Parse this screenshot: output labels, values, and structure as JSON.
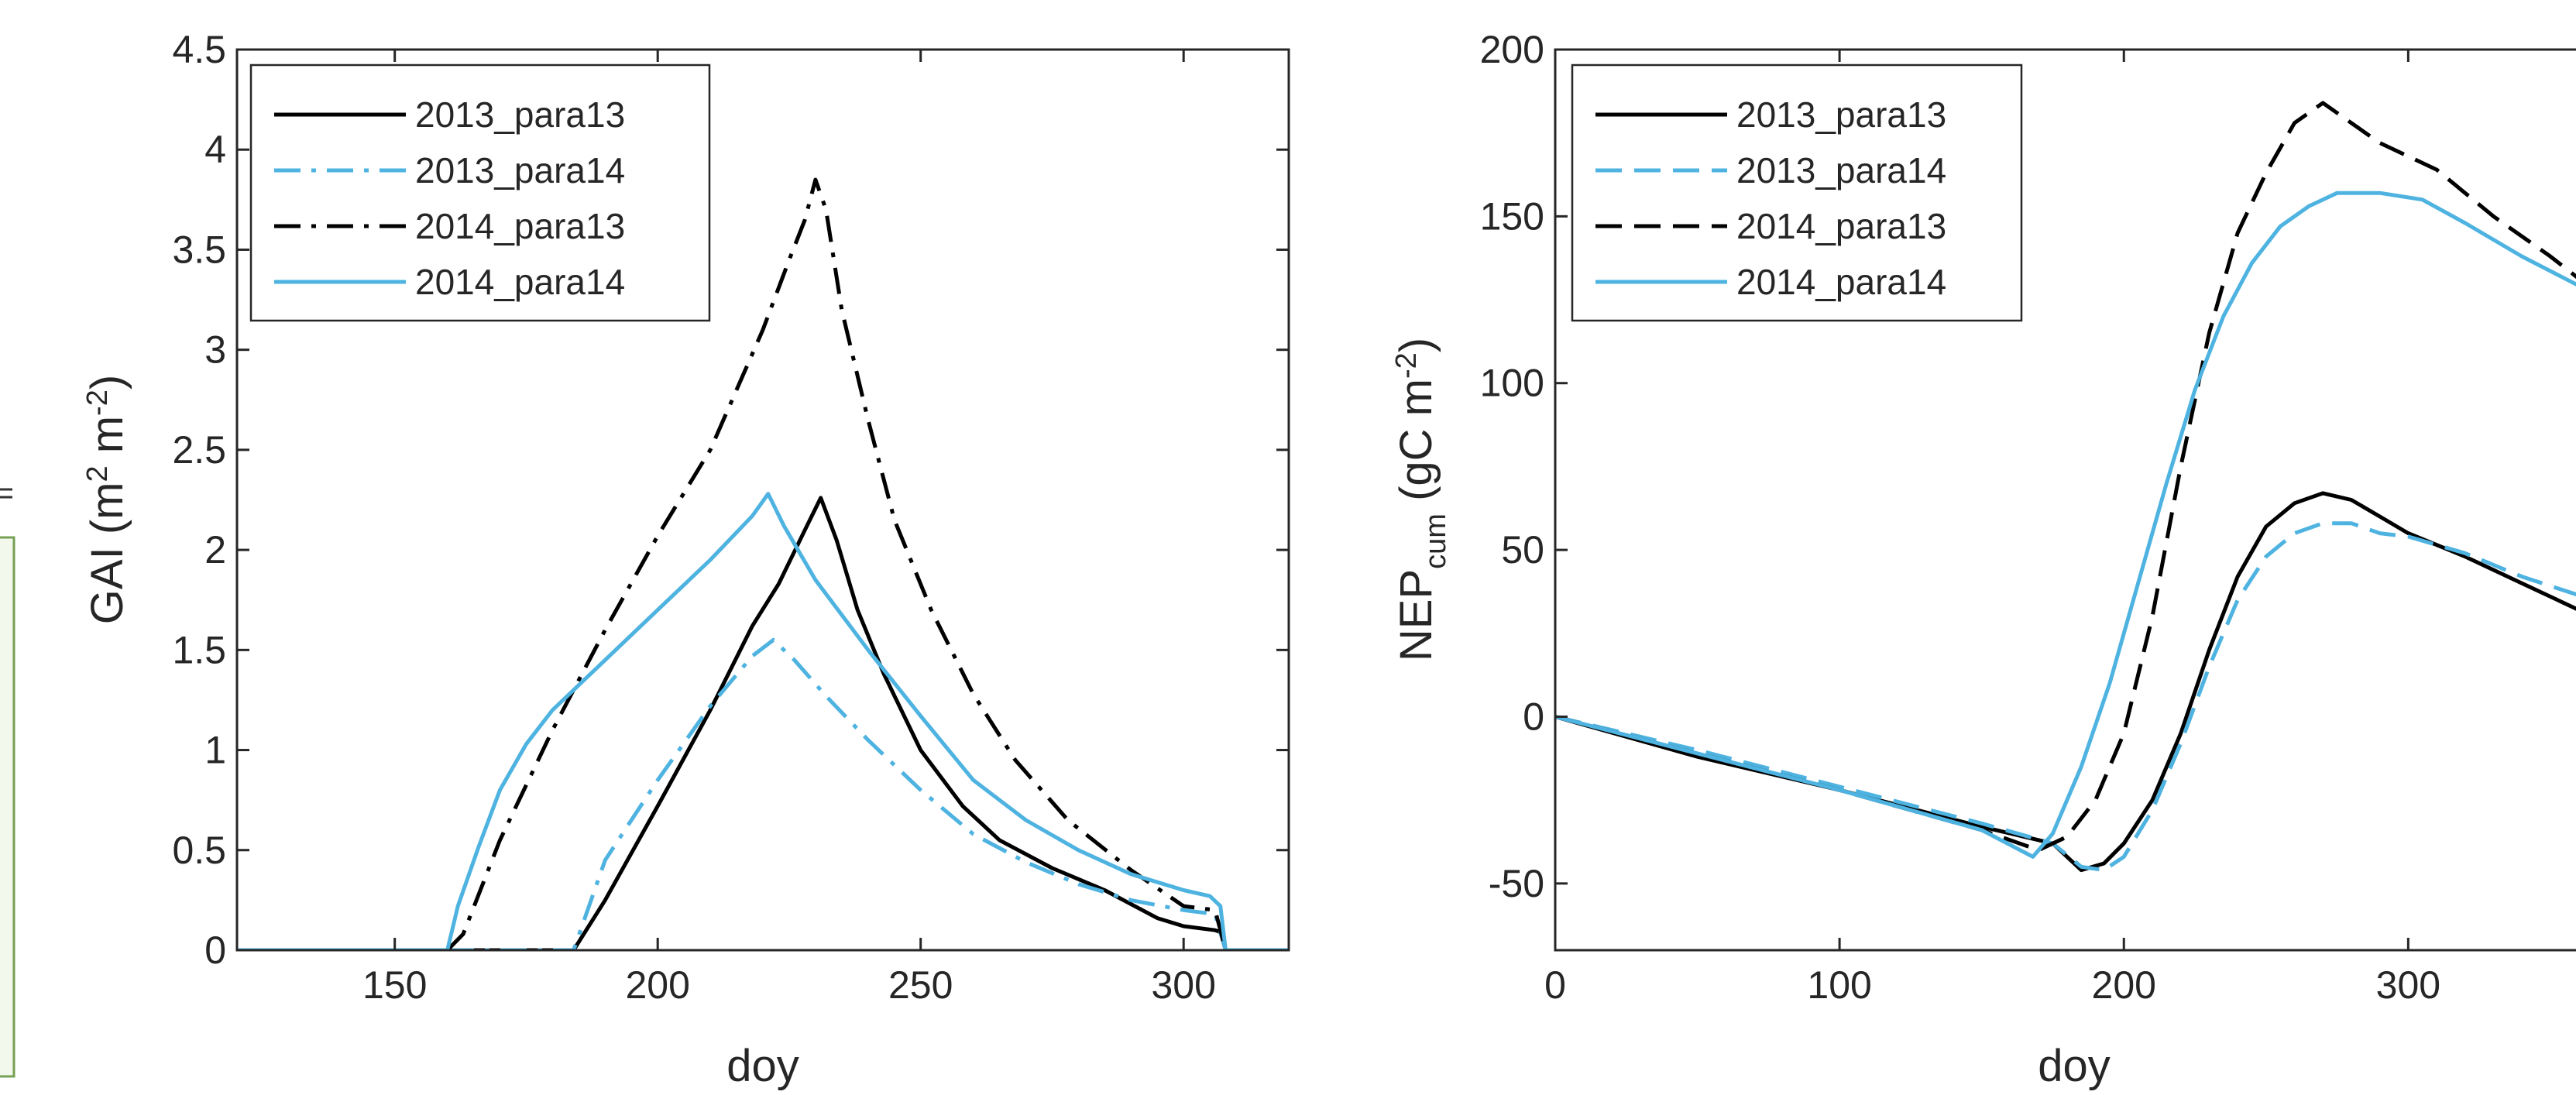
{
  "chart_data": [
    {
      "type": "line",
      "title": "",
      "xlabel": "doy",
      "ylabel": {
        "main": "GAI (m",
        "sup1": "2",
        "mid": " m",
        "sup2": "-2",
        "end": ")"
      },
      "xlim": [
        120,
        320
      ],
      "ylim": [
        0,
        4.5
      ],
      "xticks": [
        150,
        200,
        250,
        300
      ],
      "yticks": [
        0,
        0.5,
        1,
        1.5,
        2,
        2.5,
        3,
        3.5,
        4,
        4.5
      ],
      "grid": false,
      "legend_position": "top-left",
      "series": [
        {
          "name": "2013_para13",
          "color": "#000000",
          "dash": "solid",
          "points": [
            [
              120,
              0
            ],
            [
              184,
              0
            ],
            [
              190,
              0.25
            ],
            [
              200,
              0.72
            ],
            [
              210,
              1.2
            ],
            [
              218,
              1.62
            ],
            [
              223,
              1.83
            ],
            [
              228,
              2.1
            ],
            [
              231,
              2.26
            ],
            [
              234,
              2.05
            ],
            [
              238,
              1.7
            ],
            [
              243,
              1.38
            ],
            [
              250,
              1.0
            ],
            [
              258,
              0.72
            ],
            [
              265,
              0.55
            ],
            [
              275,
              0.41
            ],
            [
              285,
              0.3
            ],
            [
              295,
              0.16
            ],
            [
              300,
              0.12
            ],
            [
              306,
              0.1
            ],
            [
              307,
              0.09
            ],
            [
              308,
              0
            ],
            [
              320,
              0
            ]
          ]
        },
        {
          "name": "2013_para14",
          "color": "#4EB3E0",
          "dash": "dashdot",
          "points": [
            [
              120,
              0
            ],
            [
              184,
              0
            ],
            [
              190,
              0.45
            ],
            [
              200,
              0.85
            ],
            [
              210,
              1.22
            ],
            [
              218,
              1.47
            ],
            [
              222,
              1.55
            ],
            [
              226,
              1.45
            ],
            [
              232,
              1.27
            ],
            [
              240,
              1.05
            ],
            [
              250,
              0.8
            ],
            [
              260,
              0.58
            ],
            [
              270,
              0.44
            ],
            [
              280,
              0.33
            ],
            [
              290,
              0.25
            ],
            [
              300,
              0.2
            ],
            [
              306,
              0.18
            ],
            [
              308,
              0
            ],
            [
              320,
              0
            ]
          ]
        },
        {
          "name": "2014_para13",
          "color": "#000000",
          "dash": "dashdot",
          "points": [
            [
              120,
              0
            ],
            [
              160,
              0
            ],
            [
              163,
              0.08
            ],
            [
              170,
              0.55
            ],
            [
              180,
              1.1
            ],
            [
              190,
              1.6
            ],
            [
              200,
              2.07
            ],
            [
              210,
              2.5
            ],
            [
              220,
              3.1
            ],
            [
              225,
              3.45
            ],
            [
              228,
              3.65
            ],
            [
              230,
              3.85
            ],
            [
              232,
              3.7
            ],
            [
              235,
              3.2
            ],
            [
              240,
              2.65
            ],
            [
              245,
              2.15
            ],
            [
              252,
              1.7
            ],
            [
              260,
              1.28
            ],
            [
              268,
              0.95
            ],
            [
              278,
              0.65
            ],
            [
              290,
              0.4
            ],
            [
              300,
              0.22
            ],
            [
              306,
              0.2
            ],
            [
              308,
              0
            ],
            [
              320,
              0
            ]
          ]
        },
        {
          "name": "2014_para14",
          "color": "#4EB3E0",
          "dash": "solid",
          "points": [
            [
              120,
              0
            ],
            [
              160,
              0
            ],
            [
              162,
              0.22
            ],
            [
              166,
              0.52
            ],
            [
              170,
              0.8
            ],
            [
              175,
              1.03
            ],
            [
              180,
              1.2
            ],
            [
              190,
              1.45
            ],
            [
              200,
              1.7
            ],
            [
              210,
              1.95
            ],
            [
              218,
              2.17
            ],
            [
              221,
              2.28
            ],
            [
              224,
              2.12
            ],
            [
              230,
              1.85
            ],
            [
              240,
              1.5
            ],
            [
              250,
              1.17
            ],
            [
              260,
              0.85
            ],
            [
              270,
              0.65
            ],
            [
              280,
              0.5
            ],
            [
              290,
              0.38
            ],
            [
              300,
              0.3
            ],
            [
              305,
              0.27
            ],
            [
              307,
              0.22
            ],
            [
              308,
              0
            ],
            [
              320,
              0
            ]
          ]
        }
      ]
    },
    {
      "type": "line",
      "title": "",
      "xlabel": "doy",
      "ylabel": {
        "main": "NEP",
        "sub": "cum",
        "mid": " (gC m",
        "sup": "-2",
        "end": ")"
      },
      "xlim": [
        0,
        365
      ],
      "ylim": [
        -70,
        200
      ],
      "xticks": [
        0,
        100,
        200,
        300
      ],
      "yticks": [
        -50,
        0,
        50,
        100,
        150,
        200
      ],
      "grid": false,
      "legend_position": "top-left",
      "series": [
        {
          "name": "2013_para13",
          "color": "#000000",
          "dash": "solid",
          "points": [
            [
              0,
              0
            ],
            [
              50,
              -12
            ],
            [
              100,
              -22
            ],
            [
              150,
              -33
            ],
            [
              175,
              -38
            ],
            [
              185,
              -46
            ],
            [
              193,
              -44
            ],
            [
              200,
              -38
            ],
            [
              210,
              -25
            ],
            [
              220,
              -5
            ],
            [
              230,
              20
            ],
            [
              240,
              42
            ],
            [
              250,
              57
            ],
            [
              260,
              64
            ],
            [
              270,
              67
            ],
            [
              280,
              65
            ],
            [
              290,
              60
            ],
            [
              300,
              55
            ],
            [
              320,
              48
            ],
            [
              340,
              40
            ],
            [
              365,
              30
            ]
          ]
        },
        {
          "name": "2013_para14",
          "color": "#4EB3E0",
          "dash": "dashed",
          "points": [
            [
              0,
              0
            ],
            [
              50,
              -10
            ],
            [
              100,
              -21
            ],
            [
              150,
              -32
            ],
            [
              175,
              -38
            ],
            [
              185,
              -45
            ],
            [
              193,
              -46
            ],
            [
              200,
              -42
            ],
            [
              210,
              -28
            ],
            [
              220,
              -8
            ],
            [
              230,
              15
            ],
            [
              240,
              35
            ],
            [
              250,
              48
            ],
            [
              260,
              55
            ],
            [
              270,
              58
            ],
            [
              280,
              58
            ],
            [
              290,
              55
            ],
            [
              300,
              54
            ],
            [
              320,
              49
            ],
            [
              340,
              42
            ],
            [
              365,
              35
            ]
          ]
        },
        {
          "name": "2014_para13",
          "color": "#000000",
          "dash": "dashed",
          "points": [
            [
              0,
              0
            ],
            [
              50,
              -11
            ],
            [
              100,
              -22
            ],
            [
              150,
              -34
            ],
            [
              170,
              -40
            ],
            [
              180,
              -36
            ],
            [
              190,
              -25
            ],
            [
              200,
              -5
            ],
            [
              210,
              30
            ],
            [
              220,
              75
            ],
            [
              230,
              115
            ],
            [
              240,
              145
            ],
            [
              250,
              163
            ],
            [
              260,
              178
            ],
            [
              270,
              184
            ],
            [
              280,
              178
            ],
            [
              290,
              172
            ],
            [
              310,
              164
            ],
            [
              330,
              150
            ],
            [
              350,
              138
            ],
            [
              365,
              128
            ]
          ]
        },
        {
          "name": "2014_para14",
          "color": "#4EB3E0",
          "dash": "solid",
          "points": [
            [
              0,
              0
            ],
            [
              50,
              -11
            ],
            [
              100,
              -22
            ],
            [
              150,
              -34
            ],
            [
              168,
              -42
            ],
            [
              175,
              -35
            ],
            [
              185,
              -15
            ],
            [
              195,
              10
            ],
            [
              205,
              40
            ],
            [
              215,
              70
            ],
            [
              225,
              98
            ],
            [
              235,
              120
            ],
            [
              245,
              136
            ],
            [
              255,
              147
            ],
            [
              265,
              153
            ],
            [
              275,
              157
            ],
            [
              290,
              157
            ],
            [
              305,
              155
            ],
            [
              320,
              148
            ],
            [
              340,
              138
            ],
            [
              365,
              127
            ]
          ]
        }
      ]
    }
  ]
}
